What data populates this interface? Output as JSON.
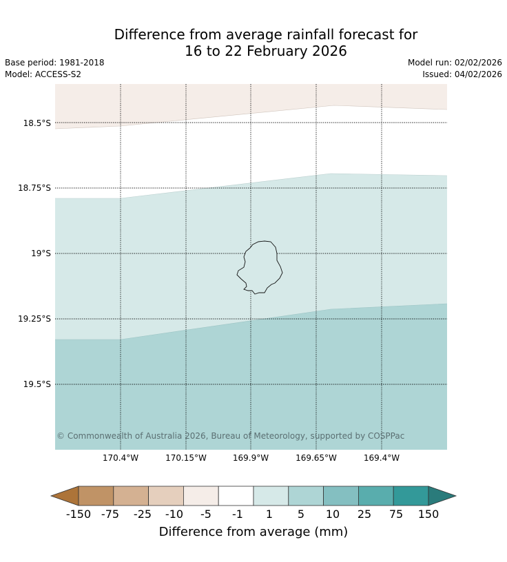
{
  "title": {
    "line1": "Difference from average rainfall forecast for",
    "line2": "16 to 22 February 2026"
  },
  "info": {
    "base_period": "Base period: 1981-2018",
    "model": "Model: ACCESS-S2",
    "model_run": "Model run: 02/02/2026",
    "issued": "Issued: 04/02/2026"
  },
  "map": {
    "lat_labels": [
      "18.5°S",
      "18.75°S",
      "19°S",
      "19.25°S",
      "19.5°S"
    ],
    "lon_labels": [
      "170.4°W",
      "170.15°W",
      "169.9°W",
      "169.65°W",
      "169.4°W"
    ],
    "copyright": "© Commonwealth of Australia 2026, Bureau of Meteorology, supported by COSPPac",
    "land_feature": "Niue island outline"
  },
  "colorbar": {
    "ticks": [
      "-150",
      "-75",
      "-25",
      "-10",
      "-5",
      "-1",
      "1",
      "5",
      "10",
      "25",
      "75",
      "150"
    ],
    "colors": [
      "#ad7439",
      "#c09366",
      "#d4b192",
      "#e5cfbd",
      "#f5ede8",
      "#ffffff",
      "#d6e9e8",
      "#aed5d5",
      "#84bfc1",
      "#59adad",
      "#339999",
      "#2a7b7b"
    ],
    "label": "Difference from average (mm)"
  }
}
